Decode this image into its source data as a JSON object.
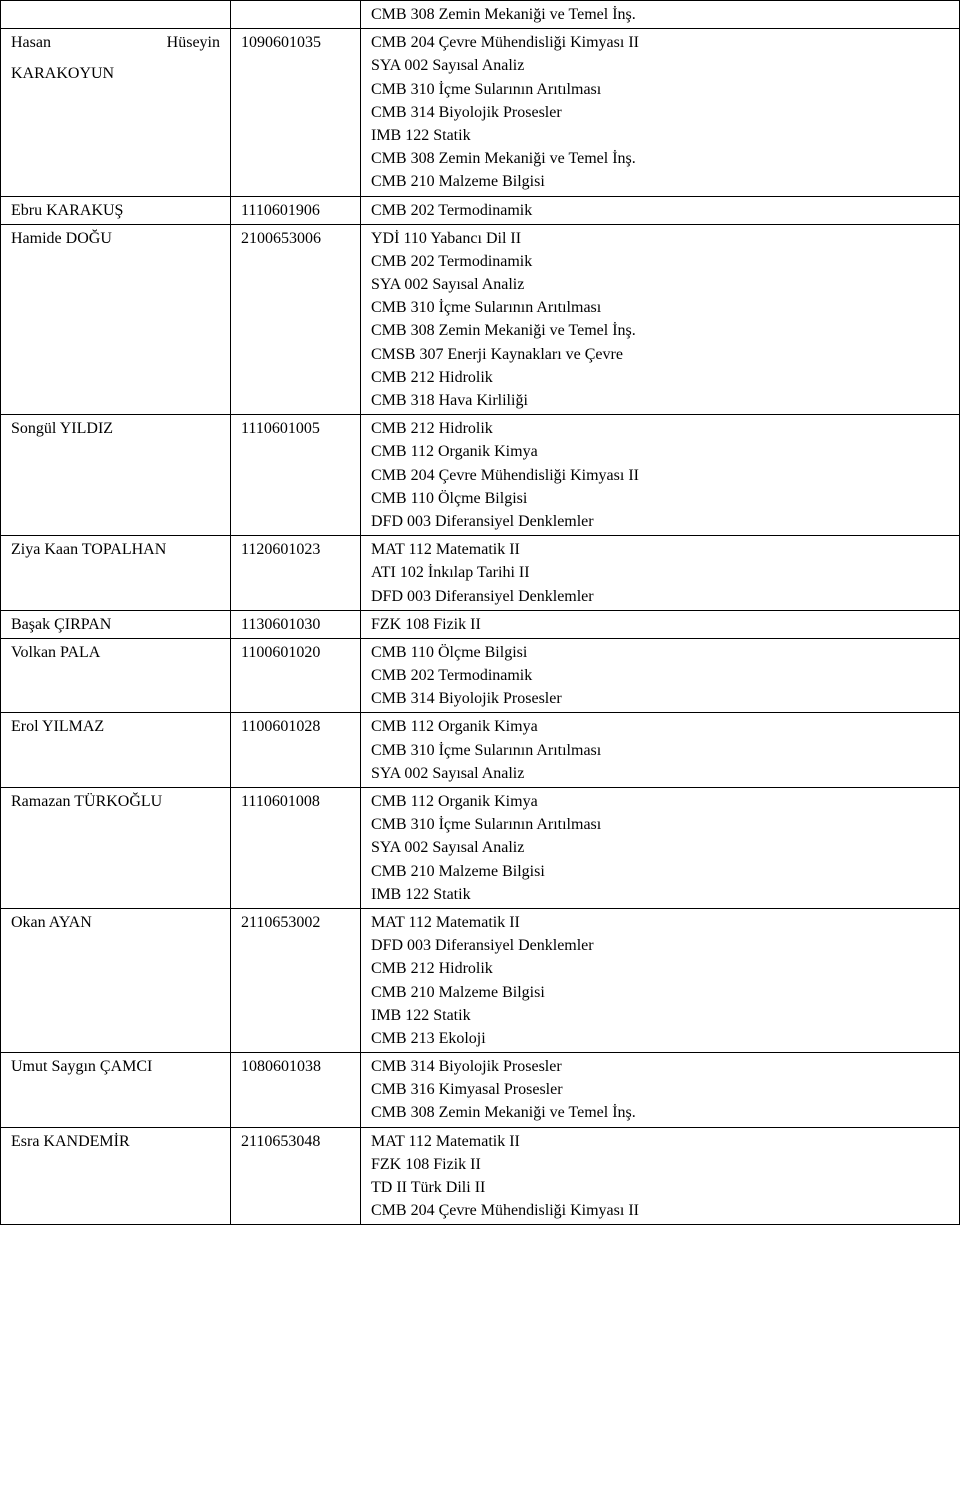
{
  "rows": [
    {
      "name_html": null,
      "name_first": "",
      "name_rest": "",
      "id": "",
      "courses": [
        "CMB 308 Zemin Mekaniği ve Temel İnş."
      ]
    },
    {
      "name_first": "Hasan",
      "name_last_right": "Hüseyin",
      "name_line2": "KARAKOYUN",
      "id": "1090601035",
      "courses": [
        "CMB 204 Çevre Mühendisliği Kimyası II",
        "SYA 002 Sayısal Analiz",
        "CMB 310 İçme Sularının Arıtılması",
        "CMB 314 Biyolojik Prosesler",
        "IMB 122 Statik",
        "CMB 308 Zemin Mekaniği ve Temel İnş.",
        "CMB 210 Malzeme Bilgisi"
      ]
    },
    {
      "name_first": "Ebru KARAKUŞ",
      "id": "1110601906",
      "courses": [
        "CMB 202 Termodinamik"
      ]
    },
    {
      "name_first": "Hamide DOĞU",
      "id": "2100653006",
      "courses": [
        "YDİ 110 Yabancı Dil II",
        "CMB 202 Termodinamik",
        "SYA 002 Sayısal Analiz",
        "CMB 310 İçme Sularının Arıtılması",
        "CMB 308 Zemin Mekaniği ve Temel İnş.",
        "CMSB 307 Enerji Kaynakları ve Çevre",
        "CMB 212 Hidrolik",
        "CMB 318 Hava Kirliliği"
      ]
    },
    {
      "name_first": "Songül YILDIZ",
      "id": "1110601005",
      "courses": [
        "CMB 212 Hidrolik",
        "CMB 112 Organik Kimya",
        "CMB 204 Çevre Mühendisliği Kimyası II",
        "CMB 110 Ölçme Bilgisi",
        "DFD 003 Diferansiyel Denklemler"
      ]
    },
    {
      "name_first": "Ziya Kaan TOPALHAN",
      "id": "1120601023",
      "courses": [
        "MAT 112 Matematik II",
        "ATI 102 İnkılap Tarihi II",
        "DFD 003 Diferansiyel Denklemler"
      ]
    },
    {
      "name_first": "Başak ÇIRPAN",
      "id": "1130601030",
      "courses": [
        "FZK 108 Fizik II"
      ]
    },
    {
      "name_first": "Volkan PALA",
      "id": "1100601020",
      "courses": [
        "CMB 110 Ölçme Bilgisi",
        "CMB 202 Termodinamik",
        "CMB 314 Biyolojik Prosesler"
      ]
    },
    {
      "name_first": "Erol YILMAZ",
      "id": "1100601028",
      "courses": [
        "CMB 112 Organik Kimya",
        "CMB 310 İçme Sularının Arıtılması",
        "SYA 002 Sayısal Analiz"
      ]
    },
    {
      "name_first": "Ramazan TÜRKOĞLU",
      "id": "1110601008",
      "courses": [
        "CMB 112 Organik Kimya",
        "CMB 310 İçme Sularının Arıtılması",
        "SYA 002 Sayısal Analiz",
        "CMB 210 Malzeme Bilgisi",
        "IMB 122 Statik"
      ]
    },
    {
      "name_first": "Okan AYAN",
      "id": "2110653002",
      "courses": [
        "MAT 112 Matematik II",
        "DFD 003 Diferansiyel Denklemler",
        "CMB 212 Hidrolik",
        "CMB 210 Malzeme Bilgisi",
        "IMB 122 Statik",
        "CMB 213 Ekoloji"
      ]
    },
    {
      "name_first": "Umut Saygın ÇAMCI",
      "id": "1080601038",
      "courses": [
        "CMB 314 Biyolojik Prosesler",
        "CMB 316 Kimyasal Prosesler",
        "CMB 308 Zemin Mekaniği ve Temel İnş."
      ]
    },
    {
      "name_first": "Esra KANDEMİR",
      "id": "2110653048",
      "courses": [
        "MAT 112 Matematik II",
        "FZK 108 Fizik II",
        "TD II Türk Dili II",
        "CMB 204 Çevre Mühendisliği Kimyası II"
      ]
    }
  ]
}
